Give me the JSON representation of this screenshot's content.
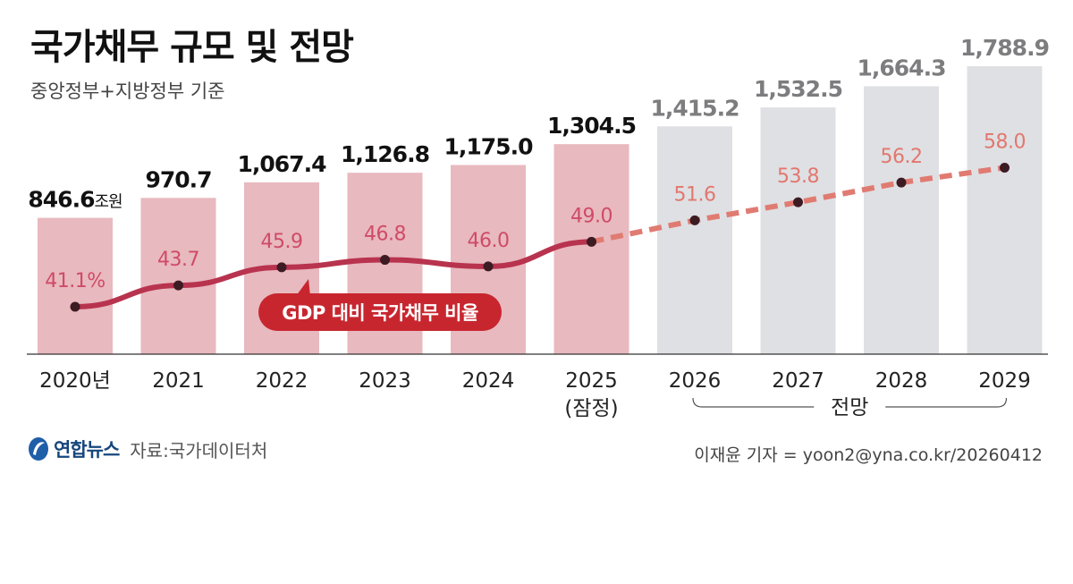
{
  "header": {
    "title": "국가채무 규모 및 전망",
    "subtitle": "중앙정부+지방정부 기준"
  },
  "footer": {
    "logo_text": "연합뉴스",
    "source": "자료:국가데이터처",
    "credit": "이재윤 기자 = yoon2@yna.co.kr/20260412"
  },
  "colors": {
    "actual_bar": "#e8b9bf",
    "forecast_bar": "#dfe0e3",
    "debt_label": "#111111",
    "forecast_debt_label": "#7d7d7f",
    "ratio_line": "#b8334e",
    "ratio_line_forecast": "#e07b72",
    "ratio_label_actual": "#cf4b68",
    "ratio_label_forecast": "#e2776f",
    "callout_bg": "#c8262f",
    "marker": "#3d1b22"
  },
  "chart_data": {
    "type": "bar",
    "categories": [
      "2020년",
      "2021",
      "2022",
      "2023",
      "2024",
      "2025",
      "2026",
      "2027",
      "2028",
      "2029"
    ],
    "category_sublabels": [
      "",
      "",
      "",
      "",
      "",
      "(잠정)",
      "",
      "",
      "",
      ""
    ],
    "bar_series": {
      "values": [
        846.6,
        970.7,
        1067.4,
        1126.8,
        1175.0,
        1304.5,
        1415.2,
        1532.5,
        1664.3,
        1788.9
      ],
      "labels": [
        "846.6",
        "970.7",
        "1,067.4",
        "1,126.8",
        "1,175.0",
        "1,304.5",
        "1,415.2",
        "1,532.5",
        "1,664.3",
        "1,788.9"
      ],
      "first_label_unit": "조원",
      "forecast_from_index": 6
    },
    "line_series": {
      "name": "GDP 대비 국가채무 비율",
      "values": [
        41.1,
        43.7,
        45.9,
        46.8,
        46.0,
        49.0,
        51.6,
        53.8,
        56.2,
        58.0
      ],
      "labels": [
        "41.1%",
        "43.7",
        "45.9",
        "46.8",
        "46.0",
        "49.0",
        "51.6",
        "53.8",
        "56.2",
        "58.0"
      ]
    },
    "forecast_bracket_label": "전망",
    "grid": false
  }
}
